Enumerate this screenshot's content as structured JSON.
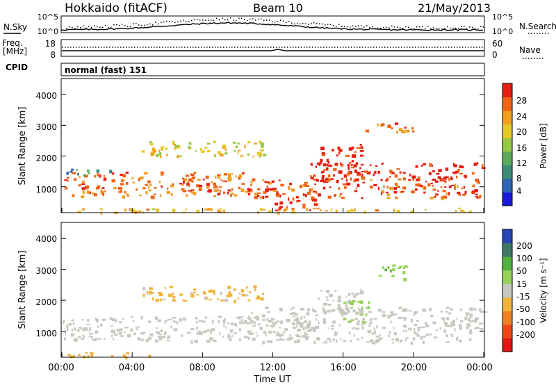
{
  "header": {
    "station": "Hokkaido (fitACF)",
    "beam": "Beam 10",
    "date": "21/May/2013"
  },
  "noise_panel": {
    "left_label": "N.Sky",
    "right_label": "N.Search",
    "left_ticks": [
      "10^5",
      "10^0"
    ],
    "right_ticks": [
      "10^5",
      "10^0"
    ]
  },
  "freq_panel": {
    "left_label_1": "Freq.",
    "left_label_2": "[MHz]",
    "right_label": "Nave",
    "left_ticks": [
      "18",
      "8"
    ],
    "right_ticks": [
      "60",
      "0"
    ]
  },
  "cpid_panel": {
    "label": "CPID",
    "text": "normal (fast) 151"
  },
  "x_axis": {
    "label": "Time UT",
    "ticks": [
      "00:00",
      "04:00",
      "08:00",
      "12:00",
      "16:00",
      "20:00",
      "00:00"
    ]
  },
  "power_panel": {
    "ylabel": "Slant Range [km]",
    "yticks": [
      "4000",
      "3000",
      "2000",
      "1000"
    ],
    "colorbar_label": "Power [dB]",
    "colorbar_ticks": [
      "28",
      "24",
      "20",
      "16",
      "12",
      "8",
      "4"
    ]
  },
  "velocity_panel": {
    "ylabel": "Slant Range [km]",
    "yticks": [
      "4000",
      "3000",
      "2000",
      "1000"
    ],
    "colorbar_label": "Velocity [m s⁻¹]",
    "colorbar_ticks": [
      "200",
      "100",
      "50",
      "15",
      "-15",
      "-50",
      "-100",
      "-200"
    ]
  },
  "colors": {
    "power_scale": [
      "#1a1adc",
      "#2e64b4",
      "#3c8c78",
      "#5aaa5a",
      "#96c846",
      "#e6c828",
      "#f0a01e",
      "#f06414",
      "#e61e10"
    ],
    "velocity_scale": [
      "#e61414",
      "#f04614",
      "#f08228",
      "#f0b43c",
      "#c8c8c0",
      "#96d25a",
      "#50b43c",
      "#3c7864",
      "#2846b4"
    ]
  },
  "chart_data": [
    {
      "type": "heatmap",
      "title": "Power [dB]",
      "xlabel": "Time UT",
      "ylabel": "Slant Range [km]",
      "x_range_hours": [
        0,
        24
      ],
      "ylim": [
        180,
        4500
      ],
      "value_range": [
        0,
        30
      ],
      "regions": [
        {
          "t_start": 0.0,
          "t_end": 10.5,
          "r_low": 700,
          "r_high": 1500,
          "power": 24
        },
        {
          "t_start": 0.0,
          "t_end": 3.0,
          "r_low": 1400,
          "r_high": 1600,
          "power": 8
        },
        {
          "t_start": 10.5,
          "t_end": 24.0,
          "r_low": 650,
          "r_high": 1300,
          "power": 26
        },
        {
          "t_start": 12.0,
          "t_end": 14.5,
          "r_low": 250,
          "r_high": 700,
          "power": 28
        },
        {
          "t_start": 14.0,
          "t_end": 24.0,
          "r_low": 1200,
          "r_high": 1800,
          "power": 28
        },
        {
          "t_start": 14.5,
          "t_end": 17.0,
          "r_low": 1700,
          "r_high": 2400,
          "power": 28
        },
        {
          "t_start": 17.0,
          "t_end": 20.0,
          "r_low": 2800,
          "r_high": 3100,
          "power": 24
        },
        {
          "t_start": 4.5,
          "t_end": 11.5,
          "r_low": 2000,
          "r_high": 2500,
          "power": 18
        },
        {
          "t_start": 0.0,
          "t_end": 24.0,
          "r_low": 180,
          "r_high": 320,
          "power": 20
        }
      ]
    },
    {
      "type": "heatmap",
      "title": "Velocity [m s⁻¹]",
      "xlabel": "Time UT",
      "ylabel": "Slant Range [km]",
      "x_range_hours": [
        0,
        24
      ],
      "ylim": [
        180,
        4500
      ],
      "value_range": [
        -200,
        200
      ],
      "regions": [
        {
          "t_start": 0.0,
          "t_end": 14.5,
          "r_low": 700,
          "r_high": 1500,
          "velocity": 0
        },
        {
          "t_start": 10.5,
          "t_end": 24.0,
          "r_low": 650,
          "r_high": 1800,
          "velocity": 0
        },
        {
          "t_start": 14.5,
          "t_end": 17.0,
          "r_low": 1700,
          "r_high": 2400,
          "velocity": 0
        },
        {
          "t_start": 16.0,
          "t_end": 17.5,
          "r_low": 1300,
          "r_high": 2000,
          "velocity": 40
        },
        {
          "t_start": 18.0,
          "t_end": 19.5,
          "r_low": 2700,
          "r_high": 3200,
          "velocity": 60
        },
        {
          "t_start": 4.5,
          "t_end": 11.5,
          "r_low": 2000,
          "r_high": 2500,
          "velocity": -30
        },
        {
          "t_start": 0.0,
          "t_end": 5.0,
          "r_low": 180,
          "r_high": 350,
          "velocity": -40
        }
      ]
    }
  ]
}
